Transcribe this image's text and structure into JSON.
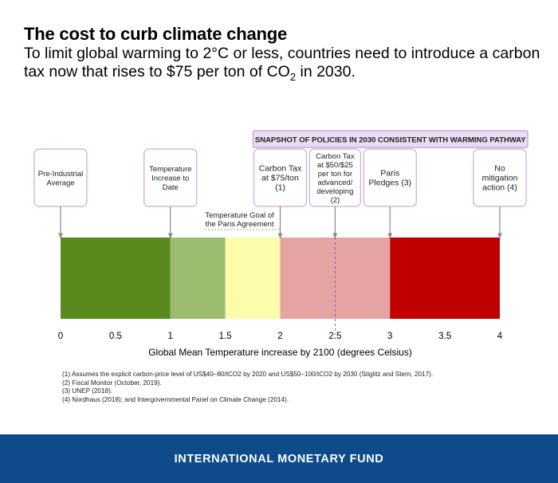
{
  "header": {
    "title": "The cost to curb climate change",
    "subtitle_before": "To limit global warming to 2°C or less, countries need to introduce a carbon tax now that rises to $75 per ton of CO",
    "subtitle_sub": "2",
    "subtitle_after": " in 2030."
  },
  "chart_data": {
    "type": "bar",
    "xlabel": "Global Mean Temperature increase by 2100 (degrees Celsius)",
    "xlim": [
      0,
      4
    ],
    "ticks": [
      "0",
      "0.5",
      "1",
      "1.5",
      "2",
      "2.5",
      "3",
      "3.5",
      "4"
    ],
    "tick_values": [
      0,
      0.5,
      1,
      1.5,
      2,
      2.5,
      3,
      3.5,
      4
    ],
    "segments": [
      {
        "start": 0,
        "end": 1,
        "color": "#5a8a1e"
      },
      {
        "start": 1,
        "end": 1.5,
        "color": "#9bbb6e"
      },
      {
        "start": 1.5,
        "end": 2,
        "color": "#fdfcab"
      },
      {
        "start": 2,
        "end": 3,
        "color": "#e6a3a3"
      },
      {
        "start": 3,
        "end": 4,
        "color": "#c00000"
      }
    ],
    "snapshot_label": "SNAPSHOT OF POLICIES IN 2030 CONSISTENT WITH WARMING PATHWAY",
    "paris_goal": {
      "value": 2,
      "lines": [
        "Temperature Goal of",
        "the Paris Agreement"
      ]
    },
    "dashed_marker": 2.5,
    "markers": [
      {
        "value": 0,
        "lines": [
          "Pre-Industrial",
          "Average"
        ]
      },
      {
        "value": 1,
        "lines": [
          "Temperature",
          "Increase to",
          "Date"
        ]
      },
      {
        "value": 2,
        "lines": [
          "Carbon Tax",
          "at $75/ton",
          "(1)"
        ]
      },
      {
        "value": 2.5,
        "lines": [
          "Carbon Tax",
          "at $50/$25",
          "per ton for",
          "advanced/",
          "developing",
          "(2)"
        ]
      },
      {
        "value": 3,
        "lines": [
          "Paris",
          "Pledges (3)"
        ]
      },
      {
        "value": 4,
        "lines": [
          "No",
          "mitigation",
          "action (4)"
        ]
      }
    ]
  },
  "footnotes": [
    "(1) Assumes the explicit carbon-price level of US$40–80/tCO2 by 2020 and US$50–100/tCO2 by 2030 (Stiglitz and Stern, 2017).",
    "(2) Fiscal Monitor (October, 2019).",
    "(3) UNEP (2018).",
    "(4) Nordhaus (2018); and Intergovernmental Panel on Climate Change (2014)."
  ],
  "footer": {
    "org": "INTERNATIONAL MONETARY FUND"
  },
  "colors": {
    "banner": "#0f4a8a",
    "box_border": "#c9a9dc",
    "snapshot_fill": "#e9dcf3",
    "arrow": "#888888"
  }
}
